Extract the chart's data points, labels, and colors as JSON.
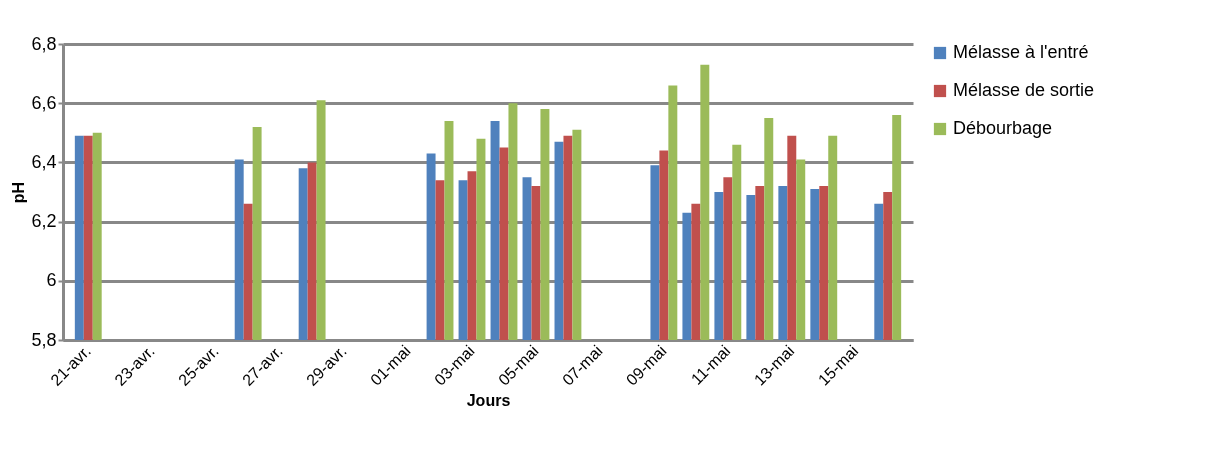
{
  "chart_data": {
    "type": "bar",
    "xlabel": "Jours",
    "ylabel": "pH",
    "categories": [
      "21-avr.",
      null,
      "23-avr.",
      null,
      "25-avr.",
      null,
      "27-avr.",
      null,
      "29-avr.",
      null,
      "01-mai",
      null,
      "03-mai",
      null,
      "05-mai",
      null,
      "07-mai",
      null,
      "09-mai",
      null,
      "11-mai",
      null,
      "13-mai",
      null,
      "15-mai",
      null
    ],
    "series": [
      {
        "name": "Mélasse à l'entré",
        "color": "#4f81bd",
        "values": [
          6.49,
          null,
          null,
          null,
          null,
          6.41,
          null,
          6.38,
          null,
          null,
          null,
          6.43,
          6.34,
          6.54,
          6.35,
          6.47,
          null,
          null,
          6.39,
          6.23,
          6.3,
          6.29,
          6.32,
          6.31,
          null,
          6.26
        ]
      },
      {
        "name": "Mélasse de sortie",
        "color": "#c0504d",
        "values": [
          6.49,
          null,
          null,
          null,
          null,
          6.26,
          null,
          6.4,
          null,
          null,
          null,
          6.34,
          6.37,
          6.45,
          6.32,
          6.49,
          null,
          null,
          6.44,
          6.26,
          6.35,
          6.32,
          6.49,
          6.32,
          null,
          6.3
        ]
      },
      {
        "name": "Débourbage",
        "color": "#9bbb59",
        "values": [
          6.5,
          null,
          null,
          null,
          null,
          6.52,
          null,
          6.61,
          null,
          null,
          null,
          6.54,
          6.48,
          6.6,
          6.58,
          6.51,
          null,
          null,
          6.66,
          6.73,
          6.46,
          6.55,
          6.41,
          6.49,
          null,
          6.56
        ]
      }
    ],
    "ylim": [
      5.8,
      6.8
    ],
    "yticks": [
      {
        "value": 5.8,
        "label": "5,8"
      },
      6,
      {
        "value": 6.2,
        "label": "6,2"
      },
      {
        "value": 6.4,
        "label": "6,4"
      },
      {
        "value": 6.6,
        "label": "6,6"
      },
      {
        "value": 6.8,
        "label": "6,8"
      }
    ],
    "grid": "y",
    "legend": "right"
  }
}
